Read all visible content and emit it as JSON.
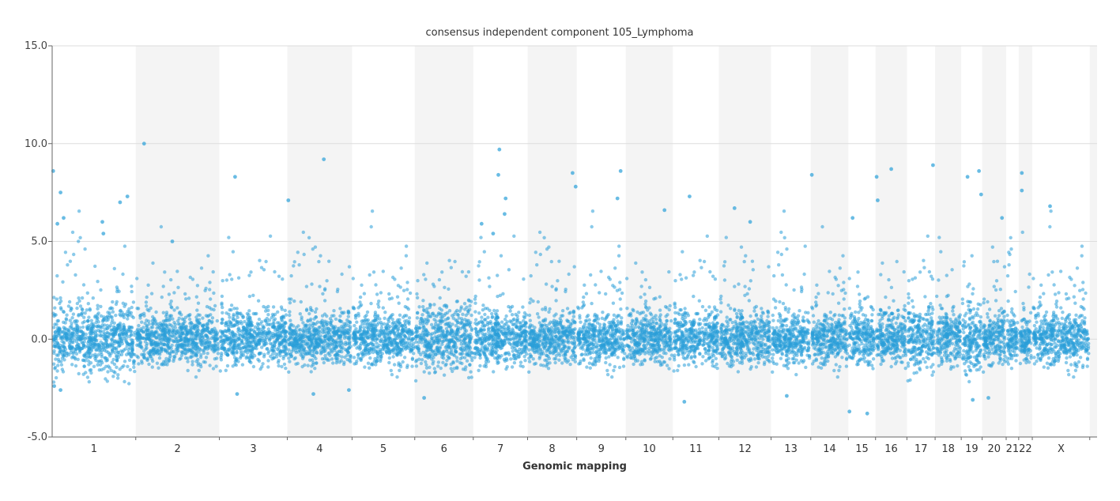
{
  "chart_data": {
    "type": "scatter",
    "title": "consensus independent component 105_Lymphoma",
    "xlabel": "Genomic mapping",
    "ylabel": "",
    "ylim": [
      -5,
      15
    ],
    "yticks": [
      "15.0",
      "10.0",
      "5.0",
      "0.0",
      "-5.0"
    ],
    "yticks_values": [
      15,
      10,
      5,
      0,
      -5
    ],
    "grid": true,
    "point_color": "#2a9fd8",
    "shade_color": "#f4f4f4",
    "chromosomes": [
      {
        "label": "1",
        "start": 0,
        "end": 8.0
      },
      {
        "label": "2",
        "start": 8.0,
        "end": 16.0
      },
      {
        "label": "3",
        "start": 16.0,
        "end": 22.5
      },
      {
        "label": "4",
        "start": 22.5,
        "end": 28.7
      },
      {
        "label": "5",
        "start": 28.7,
        "end": 34.7
      },
      {
        "label": "6",
        "start": 34.7,
        "end": 40.3
      },
      {
        "label": "7",
        "start": 40.3,
        "end": 45.5
      },
      {
        "label": "8",
        "start": 45.5,
        "end": 50.2
      },
      {
        "label": "9",
        "start": 50.2,
        "end": 54.9
      },
      {
        "label": "10",
        "start": 54.9,
        "end": 59.4
      },
      {
        "label": "11",
        "start": 59.4,
        "end": 63.8
      },
      {
        "label": "12",
        "start": 63.8,
        "end": 68.8
      },
      {
        "label": "13",
        "start": 68.8,
        "end": 72.6
      },
      {
        "label": "14",
        "start": 72.6,
        "end": 76.2
      },
      {
        "label": "15",
        "start": 76.2,
        "end": 78.8
      },
      {
        "label": "16",
        "start": 78.8,
        "end": 81.8
      },
      {
        "label": "17",
        "start": 81.8,
        "end": 84.5
      },
      {
        "label": "18",
        "start": 84.5,
        "end": 87.0
      },
      {
        "label": "19",
        "start": 87.0,
        "end": 89.0
      },
      {
        "label": "20",
        "start": 89.0,
        "end": 91.3
      },
      {
        "label": "21",
        "start": 91.3,
        "end": 92.5
      },
      {
        "label": "22",
        "start": 92.5,
        "end": 93.8
      },
      {
        "label": "X",
        "start": 93.8,
        "end": 99.3
      },
      {
        "label": "",
        "start": 99.3,
        "end": 100
      }
    ],
    "outliers": [
      {
        "x": 0.1,
        "y": 8.6
      },
      {
        "x": 0.8,
        "y": 7.5
      },
      {
        "x": 1.1,
        "y": 6.2
      },
      {
        "x": 0.5,
        "y": 5.9
      },
      {
        "x": 4.8,
        "y": 6.0
      },
      {
        "x": 4.9,
        "y": 5.4
      },
      {
        "x": 6.5,
        "y": 7.0
      },
      {
        "x": 7.2,
        "y": 7.3
      },
      {
        "x": 8.8,
        "y": 10.0
      },
      {
        "x": 11.5,
        "y": 5.0
      },
      {
        "x": 17.5,
        "y": 8.3
      },
      {
        "x": 22.6,
        "y": 7.1
      },
      {
        "x": 26.0,
        "y": 9.2
      },
      {
        "x": 42.8,
        "y": 9.7
      },
      {
        "x": 42.7,
        "y": 8.4
      },
      {
        "x": 43.4,
        "y": 7.2
      },
      {
        "x": 43.3,
        "y": 6.4
      },
      {
        "x": 49.8,
        "y": 8.5
      },
      {
        "x": 50.1,
        "y": 7.8
      },
      {
        "x": 54.1,
        "y": 7.2
      },
      {
        "x": 54.4,
        "y": 8.6
      },
      {
        "x": 58.6,
        "y": 6.6
      },
      {
        "x": 61.0,
        "y": 7.3
      },
      {
        "x": 65.3,
        "y": 6.7
      },
      {
        "x": 72.7,
        "y": 8.4
      },
      {
        "x": 78.9,
        "y": 8.3
      },
      {
        "x": 80.3,
        "y": 8.7
      },
      {
        "x": 84.3,
        "y": 8.9
      },
      {
        "x": 87.6,
        "y": 8.3
      },
      {
        "x": 88.7,
        "y": 8.6
      },
      {
        "x": 92.8,
        "y": 8.5
      },
      {
        "x": 92.8,
        "y": 7.6
      },
      {
        "x": 95.5,
        "y": 6.8
      },
      {
        "x": 76.6,
        "y": 6.2
      },
      {
        "x": 79.0,
        "y": 7.1
      },
      {
        "x": 66.8,
        "y": 6.0
      },
      {
        "x": 88.9,
        "y": 7.4
      },
      {
        "x": 90.9,
        "y": 6.2
      },
      {
        "x": 41.1,
        "y": 5.9
      },
      {
        "x": 42.2,
        "y": 5.4
      },
      {
        "x": 17.7,
        "y": -2.8
      },
      {
        "x": 25.0,
        "y": -2.8
      },
      {
        "x": 28.4,
        "y": -2.6
      },
      {
        "x": 35.6,
        "y": -3.0
      },
      {
        "x": 60.5,
        "y": -3.2
      },
      {
        "x": 70.3,
        "y": -2.9
      },
      {
        "x": 76.3,
        "y": -3.7
      },
      {
        "x": 78.0,
        "y": -3.8
      },
      {
        "x": 88.1,
        "y": -3.1
      },
      {
        "x": 89.6,
        "y": -3.0
      },
      {
        "x": 0.2,
        "y": -2.4
      },
      {
        "x": 0.8,
        "y": -2.6
      }
    ]
  }
}
